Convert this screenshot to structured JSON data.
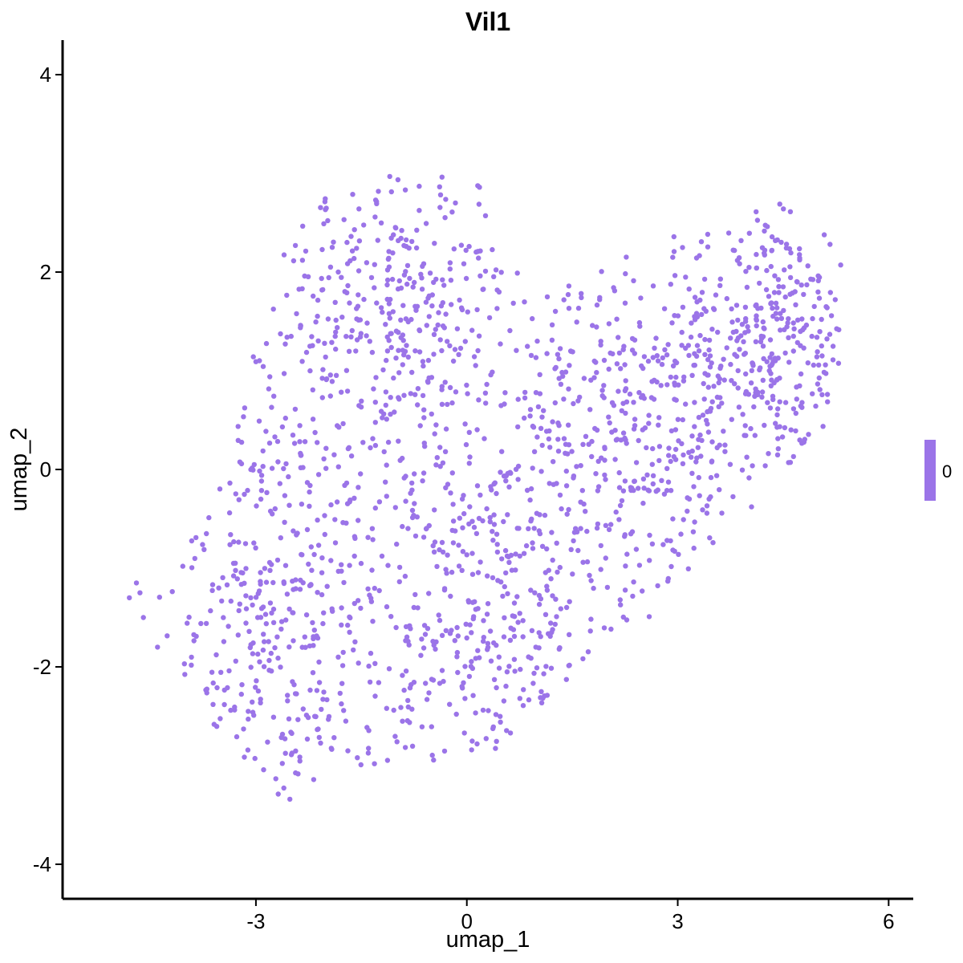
{
  "chart_data": {
    "type": "scatter",
    "title": "Vil1",
    "xlabel": "umap_1",
    "ylabel": "umap_2",
    "xlim": [
      -5.75,
      6.35
    ],
    "ylim": [
      -4.35,
      4.35
    ],
    "x_ticks": [
      -3,
      0,
      3,
      6
    ],
    "y_ticks": [
      -4,
      -2,
      0,
      2,
      4
    ],
    "x_tick_labels": [
      "-3",
      "0",
      "3",
      "6"
    ],
    "y_tick_labels": [
      "-4",
      "-2",
      "0",
      "2",
      "4"
    ],
    "grid": false,
    "point_color": "#9B74E8",
    "legend": {
      "type": "colorbar",
      "position": "right",
      "labels": [
        "0"
      ],
      "color": "#9B74E8"
    },
    "n_points_approx": 1900,
    "clusters_approx": [
      {
        "x_center": -2.5,
        "y_center": -1.5,
        "x_spread": 1.3,
        "y_spread": 1.5
      },
      {
        "x_center": -1.0,
        "y_center": 1.4,
        "x_spread": 1.3,
        "y_spread": 1.1
      },
      {
        "x_center": 0.5,
        "y_center": -1.4,
        "x_spread": 1.2,
        "y_spread": 1.3
      },
      {
        "x_center": 4.3,
        "y_center": 1.4,
        "x_spread": 0.9,
        "y_spread": 0.9
      },
      {
        "x_center": 2.5,
        "y_center": 0.5,
        "x_spread": 1.1,
        "y_spread": 1.0
      }
    ],
    "outlier_points": [
      {
        "x": -4.8,
        "y": -1.3
      },
      {
        "x": -4.7,
        "y": -1.15
      },
      {
        "x": -4.65,
        "y": -1.25
      },
      {
        "x": -4.6,
        "y": -1.5
      },
      {
        "x": -4.4,
        "y": -1.8
      }
    ]
  }
}
